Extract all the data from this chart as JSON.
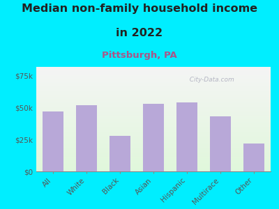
{
  "title_line1": "Median non-family household income",
  "title_line2": "in 2022",
  "subtitle": "Pittsburgh, PA",
  "categories": [
    "All",
    "White",
    "Black",
    "Asian",
    "Hispanic",
    "Multirace",
    "Other"
  ],
  "values": [
    47000,
    52000,
    28000,
    53000,
    54000,
    43000,
    22000
  ],
  "bar_color": "#b8a8d8",
  "title_fontsize": 11.5,
  "subtitle_fontsize": 9.5,
  "subtitle_color": "#aa5588",
  "title_color": "#222222",
  "background_outer": "#00eeff",
  "ylim": [
    0,
    82000
  ],
  "yticks": [
    0,
    25000,
    50000,
    75000
  ],
  "ytick_labels": [
    "$0",
    "$25k",
    "$50k",
    "$75k"
  ],
  "watermark": "  City-Data.com",
  "watermark_color": "#aaaabb"
}
